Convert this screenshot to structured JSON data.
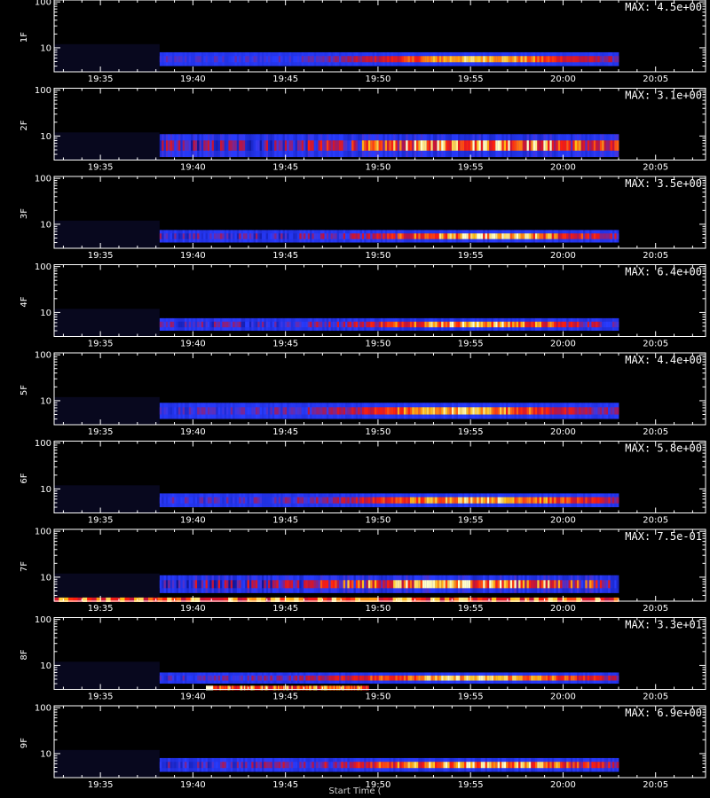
{
  "chart_data": {
    "type": "heatmap",
    "x_tick_labels": [
      "19:35",
      "19:40",
      "19:45",
      "19:50",
      "19:55",
      "20:00",
      "20:05"
    ],
    "x_tick_minutes": [
      35,
      40,
      45,
      50,
      55,
      60,
      65
    ],
    "x_range_minutes": [
      32.5,
      67.7
    ],
    "y_scale": "log",
    "y_range": [
      3,
      110
    ],
    "y_tick_labels": [
      "10",
      "100"
    ],
    "y_tick_values": [
      10,
      100
    ],
    "xlabel": "Start Time (",
    "panels": [
      {
        "label": "1F",
        "max_text": "MAX: 4.5e+00",
        "data_start_min": 38.2,
        "data_end_min": 63.0,
        "band_low": 4,
        "band_high": 8,
        "peak_center_min": 55.5,
        "peak_width": 6,
        "noise": 0.15,
        "spike_start": null,
        "spike_end": null
      },
      {
        "label": "2F",
        "max_text": "MAX: 3.1e+00",
        "data_start_min": 38.2,
        "data_end_min": 63.0,
        "band_low": 3.5,
        "band_high": 11,
        "peak_center_min": 55.5,
        "peak_width": 7,
        "noise": 0.45,
        "spike_start": null,
        "spike_end": null
      },
      {
        "label": "3F",
        "max_text": "MAX: 3.5e+00",
        "data_start_min": 38.2,
        "data_end_min": 63.0,
        "band_low": 4,
        "band_high": 7.5,
        "peak_center_min": 56,
        "peak_width": 6,
        "noise": 0.3,
        "spike_start": null,
        "spike_end": null
      },
      {
        "label": "4F",
        "max_text": "MAX: 6.4e+00",
        "data_start_min": 38.2,
        "data_end_min": 63.0,
        "band_low": 4,
        "band_high": 7.5,
        "peak_center_min": 55,
        "peak_width": 6,
        "noise": 0.3,
        "spike_start": null,
        "spike_end": null
      },
      {
        "label": "5F",
        "max_text": "MAX: 4.4e+00",
        "data_start_min": 38.2,
        "data_end_min": 63.0,
        "band_low": 4,
        "band_high": 9,
        "peak_center_min": 54.5,
        "peak_width": 6,
        "noise": 0.2,
        "spike_start": null,
        "spike_end": null
      },
      {
        "label": "6F",
        "max_text": "MAX: 5.8e+00",
        "data_start_min": 38.2,
        "data_end_min": 63.0,
        "band_low": 4,
        "band_high": 8,
        "peak_center_min": 55.5,
        "peak_width": 7,
        "noise": 0.2,
        "spike_start": null,
        "spike_end": null
      },
      {
        "label": "7F",
        "max_text": "MAX: 7.5e-01",
        "data_start_min": 38.2,
        "data_end_min": 63.0,
        "band_low": 4.5,
        "band_high": 11,
        "peak_center_min": 54.5,
        "peak_width": 7,
        "noise": 0.5,
        "spike_start": 32.5,
        "spike_end": 63.0
      },
      {
        "label": "8F",
        "max_text": "MAX: 3.3e+01",
        "data_start_min": 38.2,
        "data_end_min": 63.0,
        "band_low": 4,
        "band_high": 7,
        "peak_center_min": 55,
        "peak_width": 8,
        "noise": 0.2,
        "spike_start": 40.7,
        "spike_end": 49.5
      },
      {
        "label": "9F",
        "max_text": "MAX: 6.9e+00",
        "data_start_min": 38.2,
        "data_end_min": 63.0,
        "band_low": 4,
        "band_high": 8,
        "peak_center_min": 55.5,
        "peak_width": 7,
        "noise": 0.3,
        "spike_start": null,
        "spike_end": null
      }
    ]
  }
}
